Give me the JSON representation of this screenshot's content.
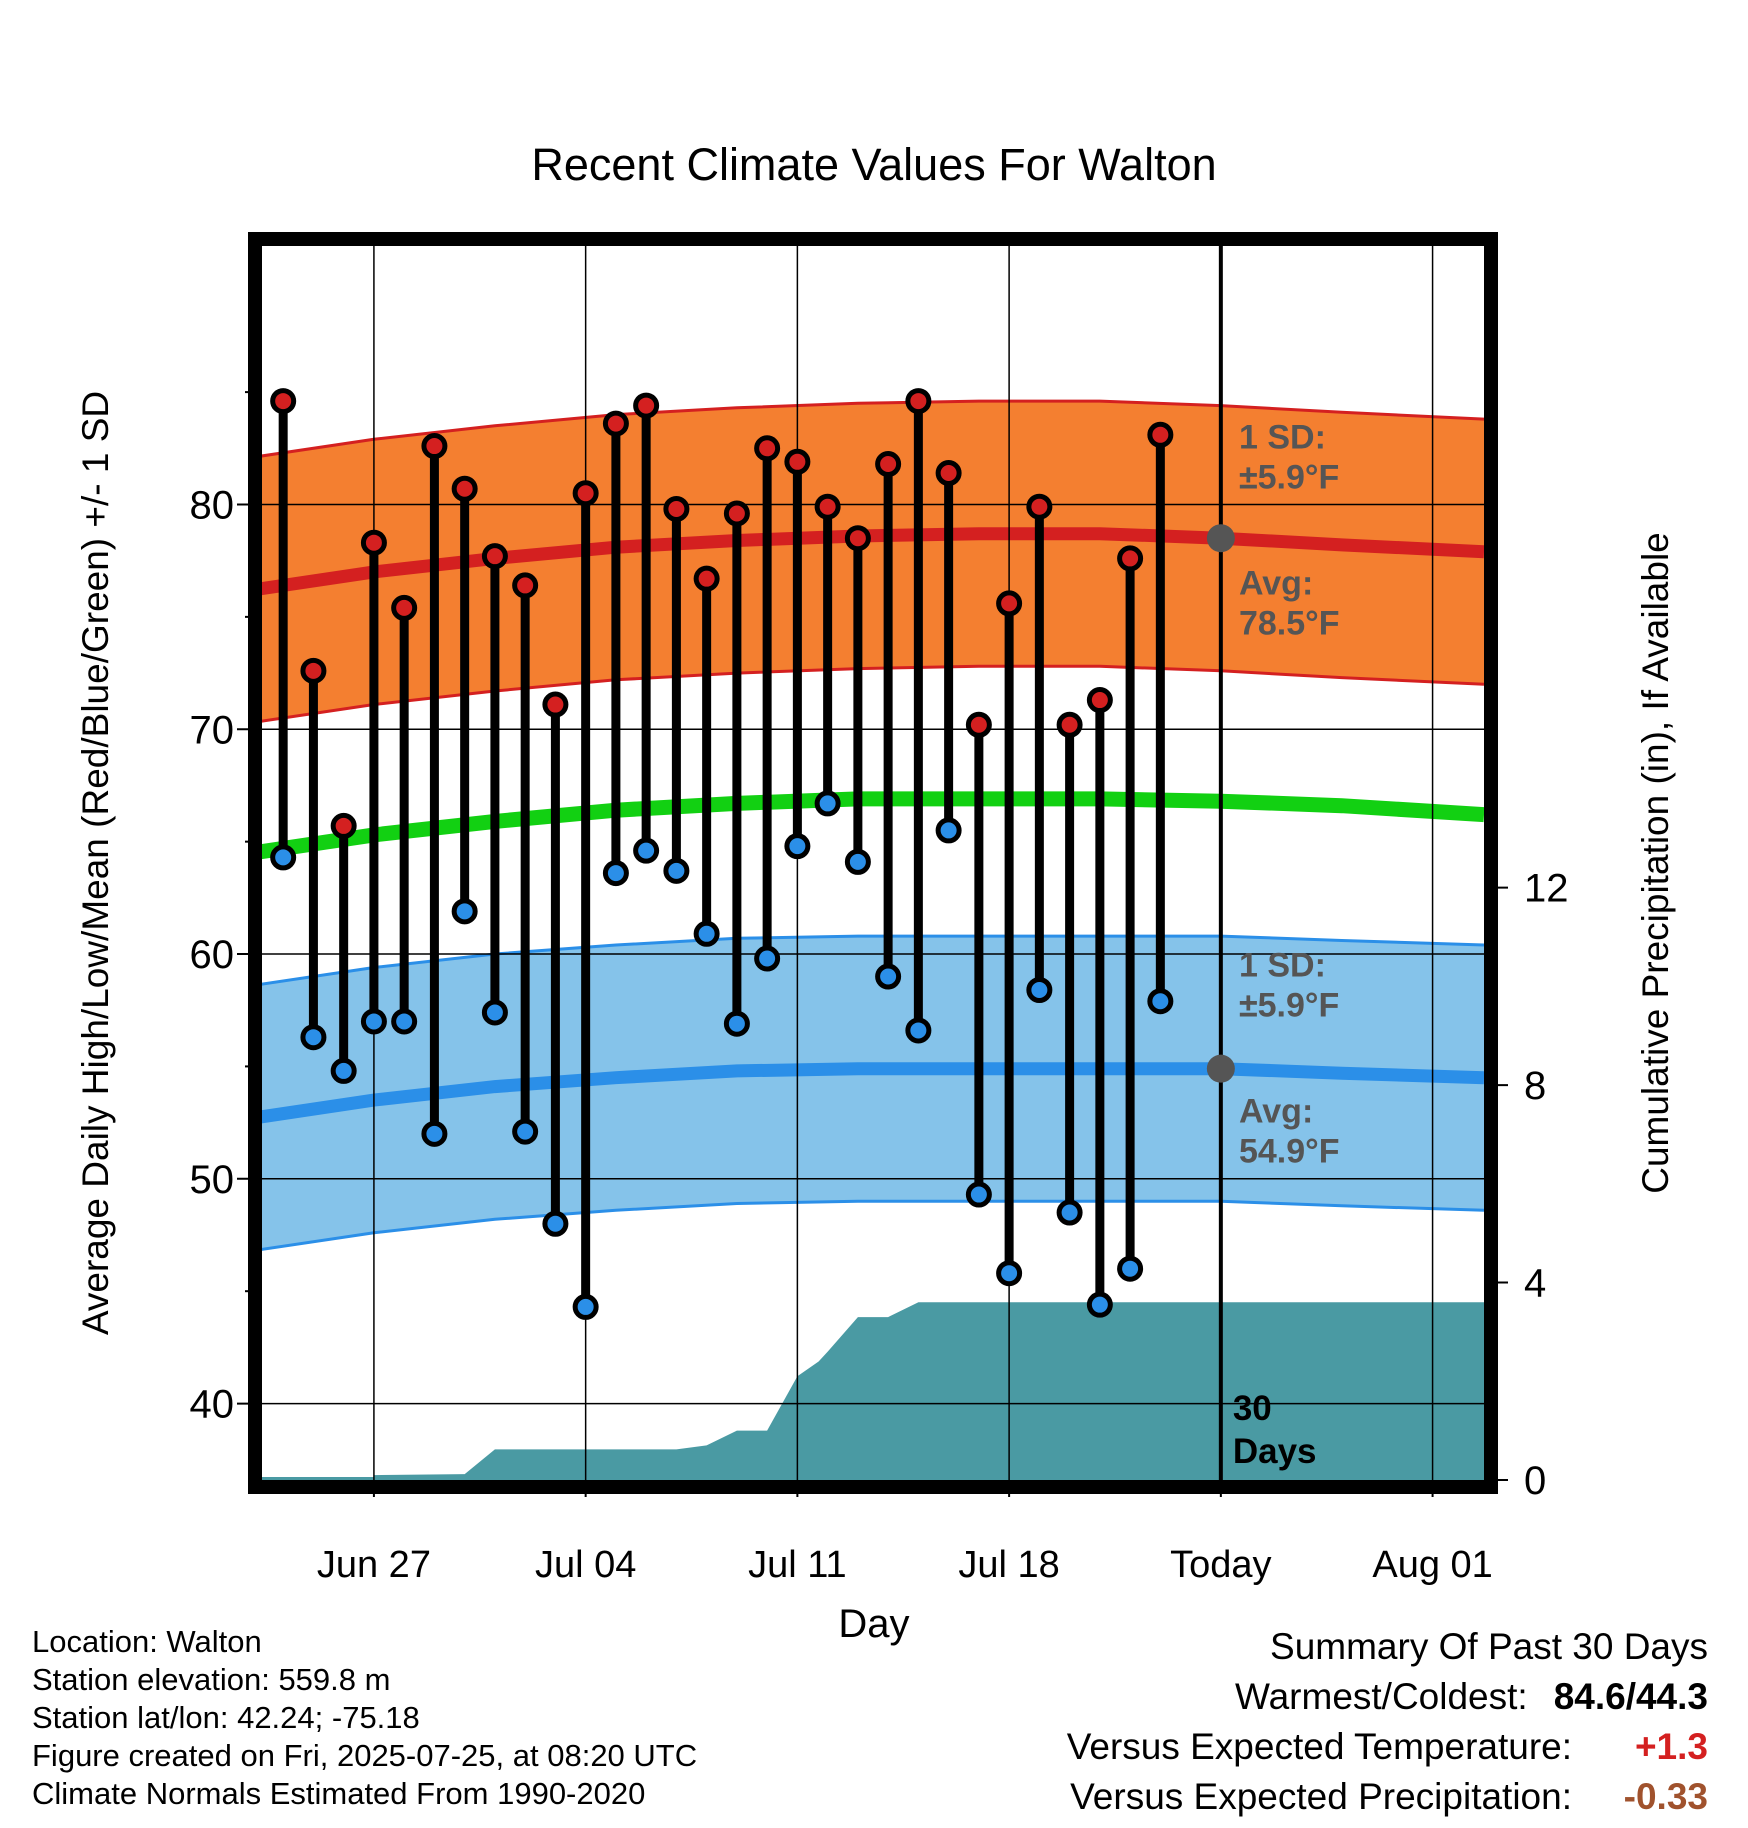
{
  "chart_data": {
    "type": "line",
    "title": "Recent Climate Values For Walton",
    "xlabel": "Day",
    "ylabel": "Average Daily High/Low/Mean (Red/Blue/Green) +/- 1 SD",
    "y2label": "Cumulative Precipitation (in), If Available",
    "ylim": [
      36.6,
      91.5
    ],
    "y2lim": [
      0,
      25
    ],
    "xlim": [
      -30.7,
      9.7
    ],
    "x_ticks": [
      {
        "day": -27,
        "label": "Jun 27"
      },
      {
        "day": -20,
        "label": "Jul 04"
      },
      {
        "day": -13,
        "label": "Jul 11"
      },
      {
        "day": -6,
        "label": "Jul 18"
      },
      {
        "day": 1,
        "label": "Today"
      },
      {
        "day": 8,
        "label": "Aug 01"
      }
    ],
    "y_ticks": [
      40,
      50,
      60,
      70,
      80
    ],
    "y2_ticks": [
      0,
      4,
      8,
      12
    ],
    "grid": true,
    "today_line": {
      "day": 1,
      "label_line1": "30",
      "label_line2": "Days"
    },
    "days": [
      -30,
      -29,
      -28,
      -27,
      -26,
      -25,
      -24,
      -23,
      -22,
      -21,
      -20,
      -19,
      -18,
      -17,
      -16,
      -15,
      -14,
      -13,
      -12,
      -11,
      -10,
      -9,
      -8,
      -7,
      -6,
      -5,
      -4,
      -3,
      -2,
      -1
    ],
    "series": [
      {
        "name": "High",
        "color": "#d42020",
        "values": [
          84.6,
          72.6,
          65.7,
          78.3,
          75.4,
          82.6,
          80.7,
          77.7,
          76.4,
          71.1,
          80.5,
          83.6,
          84.4,
          79.8,
          76.7,
          79.6,
          82.5,
          81.9,
          79.9,
          78.5,
          81.8,
          84.6,
          81.4,
          70.2,
          75.6,
          79.9,
          70.2,
          71.3,
          77.6,
          83.1
        ]
      },
      {
        "name": "Low",
        "color": "#2b8fe8",
        "values": [
          64.3,
          56.3,
          54.8,
          57.0,
          57.0,
          52.0,
          61.9,
          57.4,
          52.1,
          48.0,
          44.3,
          63.6,
          64.6,
          63.7,
          60.9,
          56.9,
          59.8,
          64.8,
          66.7,
          64.1,
          59.0,
          56.6,
          65.5,
          49.3,
          45.8,
          58.4,
          48.5,
          44.4,
          46.0,
          57.9
        ]
      }
    ],
    "normals": {
      "days": [
        -31,
        -27,
        -23,
        -19,
        -15,
        -11,
        -7,
        -3,
        1,
        5,
        9.7
      ],
      "avg_high": [
        76.2,
        77.0,
        77.6,
        78.1,
        78.4,
        78.6,
        78.7,
        78.7,
        78.5,
        78.2,
        77.9
      ],
      "avg_low": [
        52.7,
        53.5,
        54.1,
        54.5,
        54.8,
        54.9,
        54.9,
        54.9,
        54.9,
        54.7,
        54.5
      ],
      "avg_mean": [
        64.5,
        65.3,
        65.9,
        66.4,
        66.7,
        66.9,
        66.9,
        66.9,
        66.8,
        66.6,
        66.2
      ],
      "sd": 5.9
    },
    "precip_cumulative": {
      "color": "#4a9aa3",
      "days": [
        -27,
        -24,
        -23,
        -22,
        -21,
        -20,
        -19,
        -18,
        -17,
        -16,
        -15,
        -14,
        -13,
        -12.3,
        -12,
        -11,
        -10,
        -9,
        -8,
        -7,
        9.7
      ],
      "values": [
        0.1,
        0.12,
        0.62,
        0.62,
        0.62,
        0.62,
        0.62,
        0.62,
        0.62,
        0.7,
        1.0,
        1.0,
        2.1,
        2.4,
        2.6,
        3.3,
        3.3,
        3.6,
        3.6,
        3.6,
        3.6
      ]
    },
    "annotations": [
      {
        "line1": "1 SD:",
        "line2": "±5.9°F",
        "color": "#555555",
        "anchor_day": 1.6,
        "anchor_value": 82.5
      },
      {
        "line1": "Avg:",
        "line2": "78.5°F",
        "color": "#555555",
        "marker_day": 1,
        "marker_value": 78.5,
        "anchor_day": 1.6,
        "anchor_value": 76.0
      },
      {
        "line1": "1 SD:",
        "line2": "±5.9°F",
        "color": "#555555",
        "anchor_day": 1.6,
        "anchor_value": 59.0
      },
      {
        "line1": "Avg:",
        "line2": "54.9°F",
        "color": "#555555",
        "marker_day": 1,
        "marker_value": 54.9,
        "anchor_day": 1.6,
        "anchor_value": 52.5
      }
    ],
    "band_colors": {
      "high_band": "#f47f30",
      "high_line": "#d42020",
      "low_band": "#85c3ea",
      "low_line": "#2b8fe8",
      "mean_line": "#12d012"
    }
  },
  "info": {
    "location": "Location: Walton",
    "elevation": "Station elevation: 559.8 m",
    "latlon": "Station lat/lon: 42.24; -75.18",
    "created": "Figure created on Fri, 2025-07-25, at 08:20 UTC",
    "normals": "Climate Normals Estimated From 1990-2020"
  },
  "summary": {
    "title": "Summary Of Past 30 Days",
    "warm_label": "Warmest/Coldest:",
    "warm_value": "84.6/44.3",
    "temp_label": "Versus Expected Temperature:",
    "temp_value": "+1.3",
    "temp_color": "#d42020",
    "precip_label": "Versus Expected Precipitation:",
    "precip_value": "-0.33",
    "precip_color": "#a0522d"
  }
}
